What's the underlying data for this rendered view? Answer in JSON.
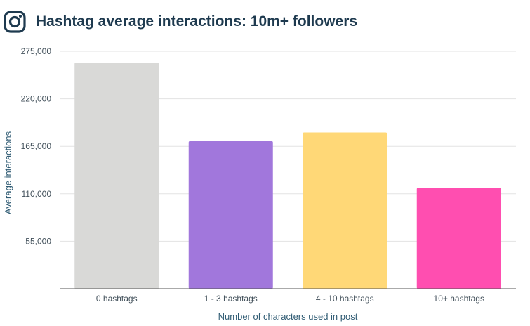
{
  "header": {
    "title": "Hashtag average interactions: 10m+ followers",
    "icon": "instagram-icon"
  },
  "colors": {
    "title": "#1e3a4f",
    "grid": "#e3e3e3",
    "axis": "#555555",
    "bars": [
      "#d9d9d7",
      "#a177dc",
      "#ffd877",
      "#ff4eb0"
    ]
  },
  "chart_data": {
    "type": "bar",
    "title": "Hashtag average interactions: 10m+ followers",
    "categories": [
      "0 hashtags",
      "1 - 3 hashtags",
      "4 - 10 hashtags",
      "10+ hashtags"
    ],
    "values": [
      262000,
      171000,
      181000,
      117000
    ],
    "xlabel": "Number of characters used in post",
    "ylabel": "Average interactions",
    "ylim": [
      0,
      275000
    ],
    "yticks": [
      55000,
      110000,
      165000,
      220000,
      275000
    ],
    "ytick_labels": [
      "55,000",
      "110,000",
      "165,000",
      "220,000",
      "275,000"
    ],
    "grid": true,
    "legend": "none"
  }
}
